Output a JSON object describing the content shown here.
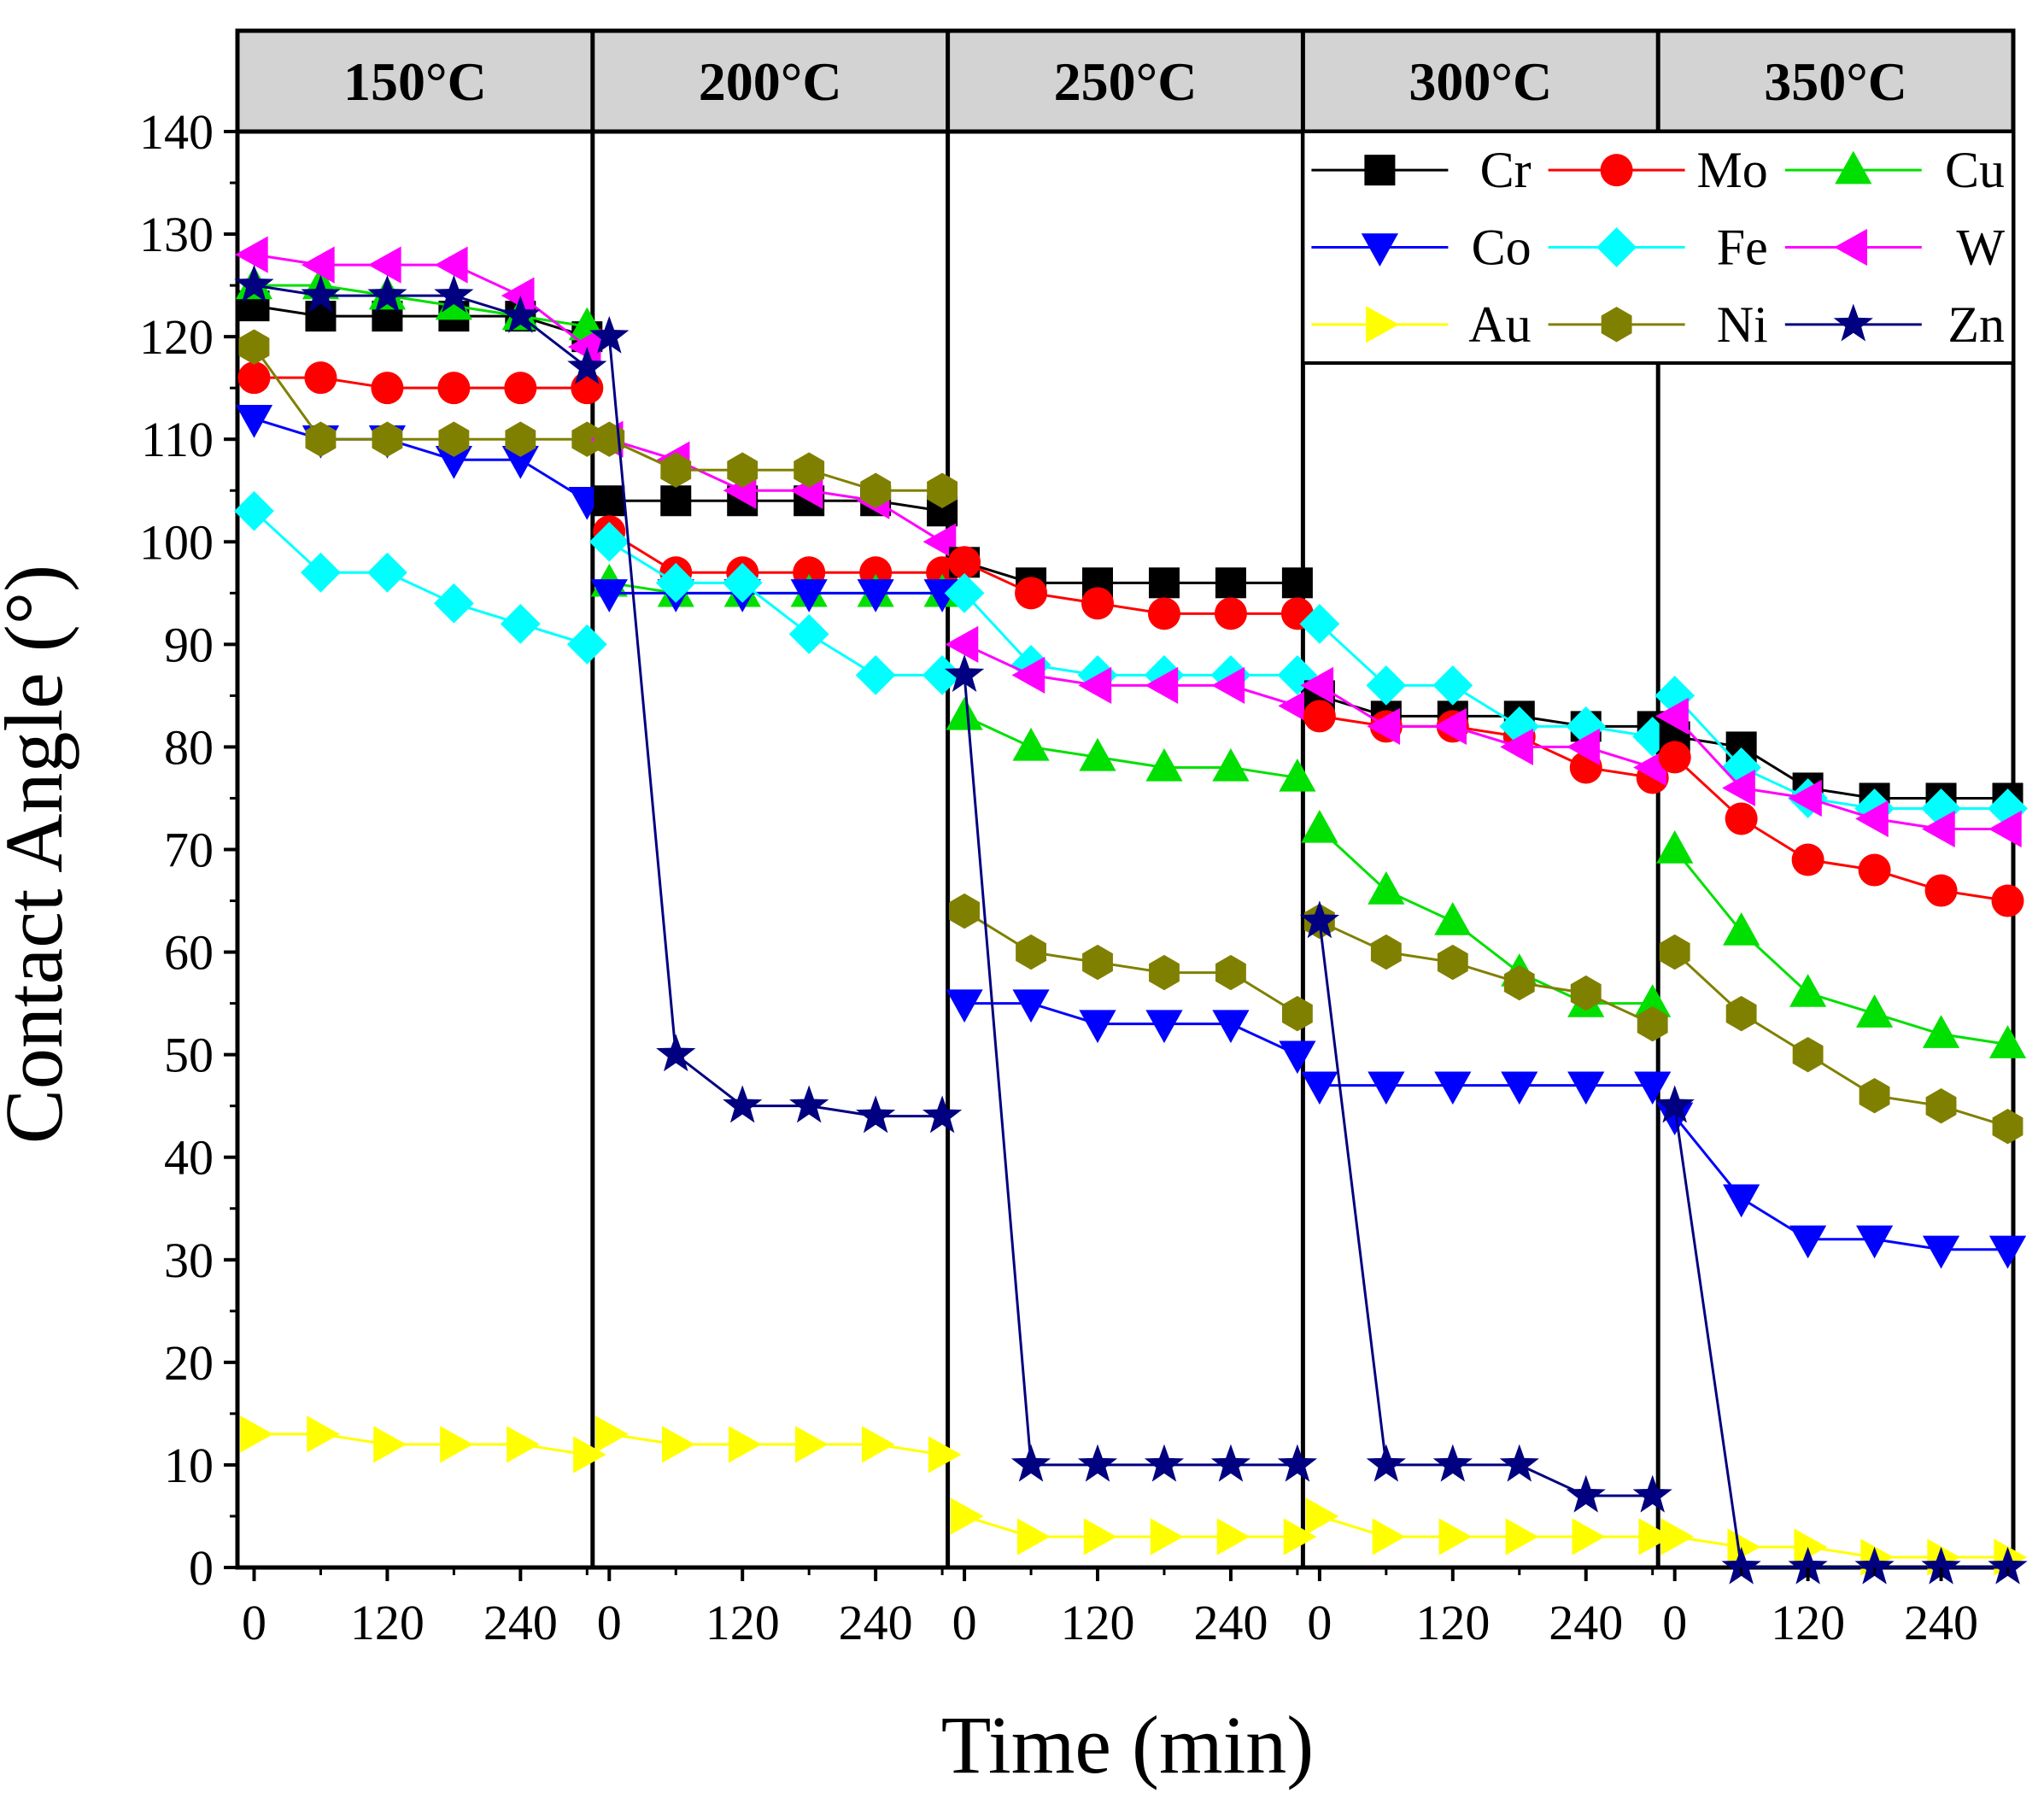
{
  "chart_data": {
    "type": "line",
    "title": "",
    "xlabel": "Time (min)",
    "ylabel": "Contact Angle (°)",
    "ylim": [
      0,
      140
    ],
    "yticks": [
      "0",
      "10",
      "20",
      "30",
      "40",
      "50",
      "60",
      "70",
      "80",
      "90",
      "100",
      "110",
      "120",
      "130",
      "140"
    ],
    "xlim": [
      -15,
      305
    ],
    "xticks": [
      "0",
      "120",
      "240"
    ],
    "x": [
      0,
      60,
      120,
      180,
      240,
      300
    ],
    "legend_position": "top-right",
    "panels": [
      {
        "label": "150°C",
        "series": {
          "Cr": [
            123,
            122,
            122,
            122,
            122,
            120
          ],
          "Mo": [
            116,
            116,
            115,
            115,
            115,
            115
          ],
          "Cu": [
            125,
            125,
            124,
            123,
            122,
            121
          ],
          "Co": [
            112,
            110,
            110,
            108,
            108,
            104
          ],
          "Fe": [
            103,
            97,
            97,
            94,
            92,
            90
          ],
          "W": [
            128,
            127,
            127,
            127,
            124,
            119
          ],
          "Au": [
            13,
            13,
            12,
            12,
            12,
            11
          ],
          "Ni": [
            119,
            110,
            110,
            110,
            110,
            110
          ],
          "Zn": [
            125,
            124,
            124,
            124,
            122,
            117
          ]
        }
      },
      {
        "label": "200°C",
        "series": {
          "Cr": [
            104,
            104,
            104,
            104,
            104,
            103
          ],
          "Mo": [
            101,
            97,
            97,
            97,
            97,
            97
          ],
          "Cu": [
            96,
            95,
            95,
            95,
            95,
            95
          ],
          "Co": [
            95,
            95,
            95,
            95,
            95,
            95
          ],
          "Fe": [
            100,
            96,
            96,
            91,
            87,
            87
          ],
          "W": [
            110,
            108,
            105,
            105,
            104,
            100
          ],
          "Au": [
            13,
            12,
            12,
            12,
            12,
            11
          ],
          "Ni": [
            110,
            107,
            107,
            107,
            105,
            105
          ],
          "Zn": [
            120,
            50,
            45,
            45,
            44,
            44
          ]
        }
      },
      {
        "label": "250°C",
        "series": {
          "Cr": [
            98,
            96,
            96,
            96,
            96,
            96
          ],
          "Mo": [
            98,
            95,
            94,
            93,
            93,
            93
          ],
          "Cu": [
            83,
            80,
            79,
            78,
            78,
            77
          ],
          "Co": [
            55,
            55,
            53,
            53,
            53,
            50
          ],
          "Fe": [
            95,
            88,
            87,
            87,
            87,
            87
          ],
          "W": [
            90,
            87,
            86,
            86,
            86,
            84
          ],
          "Au": [
            5,
            3,
            3,
            3,
            3,
            3
          ],
          "Ni": [
            64,
            60,
            59,
            58,
            58,
            54
          ],
          "Zn": [
            87,
            10,
            10,
            10,
            10,
            10
          ]
        }
      },
      {
        "label": "300°C",
        "series": {
          "Cr": [
            85,
            83,
            83,
            83,
            82,
            82
          ],
          "Mo": [
            83,
            82,
            82,
            81,
            78,
            77
          ],
          "Cu": [
            72,
            66,
            63,
            58,
            55,
            55
          ],
          "Co": [
            47,
            47,
            47,
            47,
            47,
            47
          ],
          "Fe": [
            92,
            86,
            86,
            82,
            82,
            81
          ],
          "W": [
            86,
            82,
            82,
            80,
            80,
            78
          ],
          "Au": [
            5,
            3,
            3,
            3,
            3,
            3
          ],
          "Ni": [
            63,
            60,
            59,
            57,
            56,
            53
          ],
          "Zn": [
            63,
            10,
            10,
            10,
            7,
            7
          ]
        }
      },
      {
        "label": "350°C",
        "series": {
          "Cr": [
            81,
            80,
            76,
            75,
            75,
            75
          ],
          "Mo": [
            79,
            73,
            69,
            68,
            66,
            65
          ],
          "Cu": [
            70,
            62,
            56,
            54,
            52,
            51
          ],
          "Co": [
            44,
            36,
            32,
            32,
            31,
            31
          ],
          "Fe": [
            85,
            78,
            75,
            74,
            74,
            74
          ],
          "W": [
            83,
            76,
            75,
            73,
            72,
            72
          ],
          "Au": [
            3,
            2,
            2,
            1,
            1,
            1
          ],
          "Ni": [
            60,
            54,
            50,
            46,
            45,
            43
          ],
          "Zn": [
            45,
            0,
            0,
            0,
            0,
            0
          ]
        }
      }
    ],
    "series_styles": [
      {
        "name": "Cr",
        "color": "#000000",
        "marker": "square"
      },
      {
        "name": "Mo",
        "color": "#ff0000",
        "marker": "circle"
      },
      {
        "name": "Cu",
        "color": "#00e000",
        "marker": "triangle-up"
      },
      {
        "name": "Co",
        "color": "#0000ff",
        "marker": "triangle-down"
      },
      {
        "name": "Fe",
        "color": "#00ffff",
        "marker": "diamond"
      },
      {
        "name": "W",
        "color": "#ff00ff",
        "marker": "triangle-left"
      },
      {
        "name": "Au",
        "color": "#ffff00",
        "marker": "triangle-right"
      },
      {
        "name": "Ni",
        "color": "#808000",
        "marker": "hexagon"
      },
      {
        "name": "Zn",
        "color": "#000080",
        "marker": "star"
      }
    ]
  }
}
